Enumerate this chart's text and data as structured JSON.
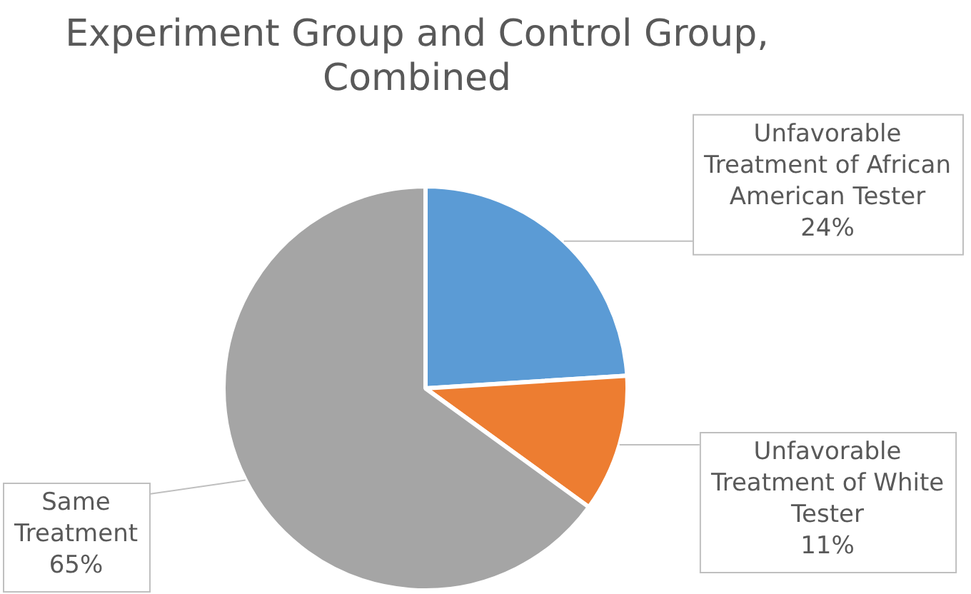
{
  "chart_data": {
    "type": "pie",
    "title": "Experiment Group and Control Group, Combined",
    "categories": [
      "Unfavorable Treatment of African American Tester",
      "Unfavorable Treatment of White Tester",
      "Same Treatment"
    ],
    "values": [
      24,
      11,
      65
    ],
    "colors": [
      "#5b9bd5",
      "#ed7d31",
      "#a5a5a5"
    ],
    "value_labels": [
      "24%",
      "11%",
      "65%"
    ],
    "legend": false
  }
}
